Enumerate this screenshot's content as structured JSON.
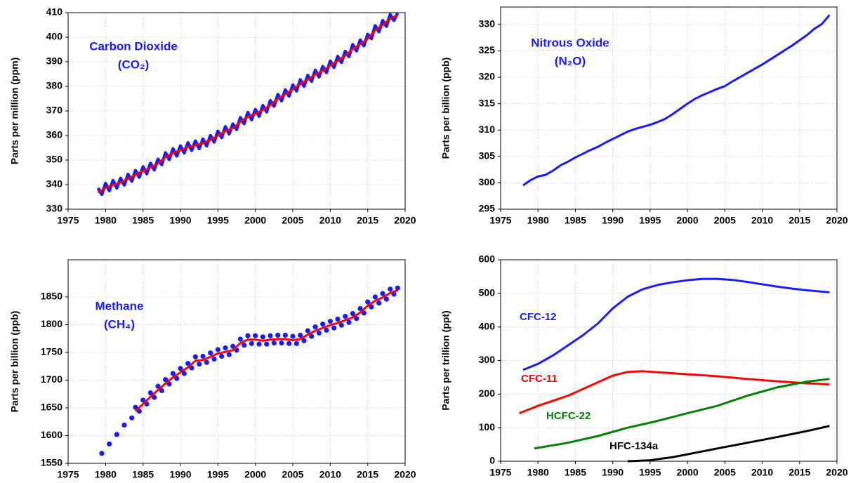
{
  "chart_data": [
    {
      "type": "line",
      "annotations": [
        "Carbon Dioxide",
        "(CO₂)"
      ],
      "ylabel": "Parts per million (ppm)",
      "xlim": [
        1975,
        2020
      ],
      "xticks": [
        1975,
        1980,
        1985,
        1990,
        1995,
        2000,
        2005,
        2010,
        2015,
        2020
      ],
      "ylim": [
        330,
        410
      ],
      "yticks": [
        330,
        340,
        350,
        360,
        370,
        380,
        390,
        400,
        410
      ],
      "grid": true,
      "series": [
        {
          "color": "#1a1aff",
          "x": [
            1979,
            1979.5,
            1980,
            1980.5,
            1981,
            1981.5,
            1982,
            1982.5,
            1983,
            1983.5,
            1984,
            1984.5,
            1985,
            1985.5,
            1986,
            1986.5,
            1987,
            1987.5,
            1988,
            1988.5,
            1989,
            1989.5,
            1990,
            1990.5,
            1991,
            1991.5,
            1992,
            1992.5,
            1993,
            1993.5,
            1994,
            1994.5,
            1995,
            1995.5,
            1996,
            1996.5,
            1997,
            1997.5,
            1998,
            1998.5,
            1999,
            1999.5,
            2000,
            2000.5,
            2001,
            2001.5,
            2002,
            2002.5,
            2003,
            2003.5,
            2004,
            2004.5,
            2005,
            2005.5,
            2006,
            2006.5,
            2007,
            2007.5,
            2008,
            2008.5,
            2009,
            2009.5,
            2010,
            2010.5,
            2011,
            2011.5,
            2012,
            2012.5,
            2013,
            2013.5,
            2014,
            2014.5,
            2015,
            2015.5,
            2016,
            2016.5,
            2017,
            2017.5,
            2018,
            2018.5,
            2019
          ],
          "values": [
            338.6,
            336.0,
            340.5,
            337.5,
            341.7,
            338.6,
            342.6,
            339.8,
            344.2,
            341.4,
            345.8,
            343.0,
            347.3,
            344.4,
            348.7,
            346.0,
            350.4,
            348.1,
            353.0,
            350.2,
            354.6,
            351.6,
            355.8,
            352.9,
            357.1,
            353.9,
            357.8,
            354.6,
            358.6,
            355.7,
            360.0,
            357.3,
            361.8,
            359.1,
            363.6,
            360.6,
            364.7,
            362.4,
            367.3,
            364.8,
            369.4,
            366.4,
            370.6,
            367.8,
            372.2,
            369.6,
            374.2,
            371.9,
            376.7,
            374.1,
            378.6,
            376.0,
            380.6,
            378.1,
            382.7,
            380.0,
            384.5,
            382.0,
            386.6,
            383.8,
            388.1,
            385.6,
            390.3,
            387.7,
            392.2,
            389.7,
            394.3,
            392.1,
            397.0,
            394.4,
            398.9,
            396.5,
            401.2,
            399.4,
            404.7,
            402.2,
            406.8,
            404.4,
            409.2,
            406.8,
            409.8
          ]
        },
        {
          "color": "#ff0000",
          "x": [
            1979,
            1980,
            1981,
            1982,
            1983,
            1984,
            1985,
            1986,
            1987,
            1988,
            1989,
            1990,
            1991,
            1992,
            1993,
            1994,
            1995,
            1996,
            1997,
            1998,
            1999,
            2000,
            2001,
            2002,
            2003,
            2004,
            2005,
            2006,
            2007,
            2008,
            2009,
            2010,
            2011,
            2012,
            2013,
            2014,
            2015,
            2016,
            2017,
            2018,
            2019
          ],
          "values": [
            336.8,
            338.7,
            339.9,
            340.8,
            342.4,
            344.0,
            345.5,
            346.9,
            348.6,
            351.2,
            352.8,
            354.0,
            355.3,
            356.0,
            356.8,
            358.2,
            360.0,
            361.8,
            362.9,
            365.5,
            367.6,
            368.8,
            370.4,
            372.4,
            374.9,
            376.8,
            378.8,
            380.9,
            382.7,
            384.8,
            386.3,
            388.5,
            390.4,
            392.5,
            395.2,
            397.1,
            399.4,
            402.9,
            405.0,
            407.4,
            409.0
          ]
        }
      ]
    },
    {
      "type": "line",
      "annotations": [
        "Nitrous Oxide",
        "(N₂O)"
      ],
      "ylabel": "Parts per billion (ppb)",
      "xlim": [
        1975,
        2020
      ],
      "xticks": [
        1975,
        1980,
        1985,
        1990,
        1995,
        2000,
        2005,
        2010,
        2015,
        2020
      ],
      "ylim": [
        295,
        333.3
      ],
      "yticks": [
        295,
        300,
        305,
        310,
        315,
        320,
        325,
        330
      ],
      "grid": true,
      "series": [
        {
          "color": "#1a1aff",
          "x": [
            1978,
            1979,
            1980,
            1981,
            1982,
            1983,
            1984,
            1985,
            1986,
            1987,
            1988,
            1989,
            1990,
            1991,
            1992,
            1993,
            1994,
            1995,
            1996,
            1997,
            1998,
            1999,
            2000,
            2001,
            2002,
            2003,
            2004,
            2005,
            2006,
            2007,
            2008,
            2009,
            2010,
            2011,
            2012,
            2013,
            2014,
            2015,
            2016,
            2017,
            2018,
            2019
          ],
          "values": [
            299.5,
            300.5,
            301.2,
            301.5,
            302.3,
            303.3,
            304.0,
            304.8,
            305.5,
            306.2,
            306.8,
            307.6,
            308.3,
            309.0,
            309.7,
            310.2,
            310.6,
            311.0,
            311.5,
            312.1,
            313.0,
            314.0,
            315.0,
            315.9,
            316.6,
            317.2,
            317.8,
            318.3,
            319.2,
            320.0,
            320.8,
            321.6,
            322.4,
            323.3,
            324.2,
            325.1,
            326.0,
            327.0,
            328.0,
            329.2,
            330.1,
            331.8
          ]
        }
      ]
    },
    {
      "type": "line",
      "annotations": [
        "Methane",
        "(CH₄)"
      ],
      "ylabel": "Parts per billion (ppb)",
      "xlim": [
        1975,
        2020
      ],
      "xticks": [
        1975,
        1980,
        1985,
        1990,
        1995,
        2000,
        2005,
        2010,
        2015,
        2020
      ],
      "ylim": [
        1550,
        1917
      ],
      "yticks": [
        1550,
        1600,
        1650,
        1700,
        1750,
        1800,
        1850
      ],
      "grid": true,
      "series": [
        {
          "color": "#1a1aff",
          "marker": "circle",
          "x": [
            1979.5,
            1980.5,
            1981.5,
            1982.5,
            1983.5,
            1984,
            1984.5,
            1985,
            1985.5,
            1986,
            1986.5,
            1987,
            1987.5,
            1988,
            1988.5,
            1989,
            1989.5,
            1990,
            1990.5,
            1991,
            1991.5,
            1992,
            1992.5,
            1993,
            1993.5,
            1994,
            1994.5,
            1995,
            1995.5,
            1996,
            1996.5,
            1997,
            1997.5,
            1998,
            1998.5,
            1999,
            1999.5,
            2000,
            2000.5,
            2001,
            2001.5,
            2002,
            2002.5,
            2003,
            2003.5,
            2004,
            2004.5,
            2005,
            2005.5,
            2006,
            2006.5,
            2007,
            2007.5,
            2008,
            2008.5,
            2009,
            2009.5,
            2010,
            2010.5,
            2011,
            2011.5,
            2012,
            2012.5,
            2013,
            2013.5,
            2014,
            2014.5,
            2015,
            2015.5,
            2016,
            2016.5,
            2017,
            2017.5,
            2018,
            2018.5,
            2019
          ],
          "values": [
            1568,
            1585,
            1602,
            1619,
            1632,
            1651,
            1644,
            1664,
            1657,
            1677,
            1669,
            1689,
            1681,
            1701,
            1693,
            1712,
            1703,
            1721,
            1712,
            1730,
            1722,
            1742,
            1729,
            1743,
            1732,
            1749,
            1738,
            1755,
            1743,
            1758,
            1746,
            1761,
            1754,
            1774,
            1763,
            1780,
            1766,
            1780,
            1765,
            1778,
            1765,
            1780,
            1767,
            1781,
            1767,
            1781,
            1766,
            1779,
            1766,
            1781,
            1771,
            1789,
            1779,
            1796,
            1785,
            1801,
            1790,
            1806,
            1794,
            1810,
            1799,
            1815,
            1804,
            1820,
            1811,
            1829,
            1821,
            1841,
            1832,
            1850,
            1839,
            1856,
            1846,
            1864,
            1855,
            1866
          ]
        },
        {
          "color": "#ff0000",
          "x": [
            1984,
            1985,
            1986,
            1987,
            1988,
            1989,
            1990,
            1991,
            1992,
            1993,
            1994,
            1995,
            1996,
            1997,
            1998,
            1999,
            2000,
            2001,
            2002,
            2003,
            2004,
            2005,
            2006,
            2007,
            2008,
            2009,
            2010,
            2011,
            2012,
            2013,
            2014,
            2015,
            2016,
            2017,
            2018,
            2019
          ],
          "values": [
            1644,
            1657,
            1670,
            1682,
            1694,
            1705,
            1714,
            1723,
            1735,
            1736,
            1742,
            1748,
            1751,
            1754,
            1767,
            1773,
            1773,
            1771,
            1773,
            1774,
            1774,
            1772,
            1774,
            1782,
            1789,
            1794,
            1799,
            1803,
            1808,
            1813,
            1822,
            1834,
            1843,
            1849,
            1857,
            1862
          ]
        }
      ]
    },
    {
      "type": "line",
      "ylabel": "Parts per trillion (ppt)",
      "xlim": [
        1975,
        2020
      ],
      "xticks": [
        1975,
        1980,
        1985,
        1990,
        1995,
        2000,
        2005,
        2010,
        2015,
        2020
      ],
      "ylim": [
        0,
        600
      ],
      "yticks": [
        0,
        100,
        200,
        300,
        400,
        500,
        600
      ],
      "grid": true,
      "series": [
        {
          "name": "CFC-12",
          "color": "#1a1aff",
          "x": [
            1978,
            1980,
            1982,
            1984,
            1986,
            1988,
            1990,
            1992,
            1994,
            1996,
            1998,
            2000,
            2002,
            2004,
            2006,
            2008,
            2010,
            2012,
            2014,
            2016,
            2019
          ],
          "values": [
            272,
            290,
            315,
            345,
            375,
            410,
            455,
            490,
            512,
            525,
            533,
            539,
            543,
            543,
            540,
            534,
            527,
            520,
            514,
            509,
            503
          ]
        },
        {
          "name": "CFC-11",
          "color": "#ff0000",
          "x": [
            1977.5,
            1980,
            1984,
            1988,
            1990,
            1992,
            1994,
            1996,
            2000,
            2004,
            2008,
            2012,
            2016,
            2019
          ],
          "values": [
            143,
            165,
            195,
            235,
            255,
            266,
            268,
            265,
            259,
            253,
            245,
            238,
            232,
            229
          ]
        },
        {
          "name": "HCFC-22",
          "color": "#008000",
          "x": [
            1979.5,
            1984,
            1988,
            1992,
            1996,
            2000,
            2004,
            2008,
            2012,
            2016,
            2019
          ],
          "values": [
            38,
            55,
            75,
            100,
            120,
            143,
            165,
            195,
            220,
            237,
            245
          ]
        },
        {
          "name": "HFC-134a",
          "color": "#000000",
          "x": [
            1992,
            1995,
            1998,
            2001,
            2004,
            2008,
            2012,
            2016,
            2019
          ],
          "values": [
            0,
            3,
            12,
            25,
            38,
            55,
            72,
            90,
            105
          ]
        }
      ]
    }
  ]
}
